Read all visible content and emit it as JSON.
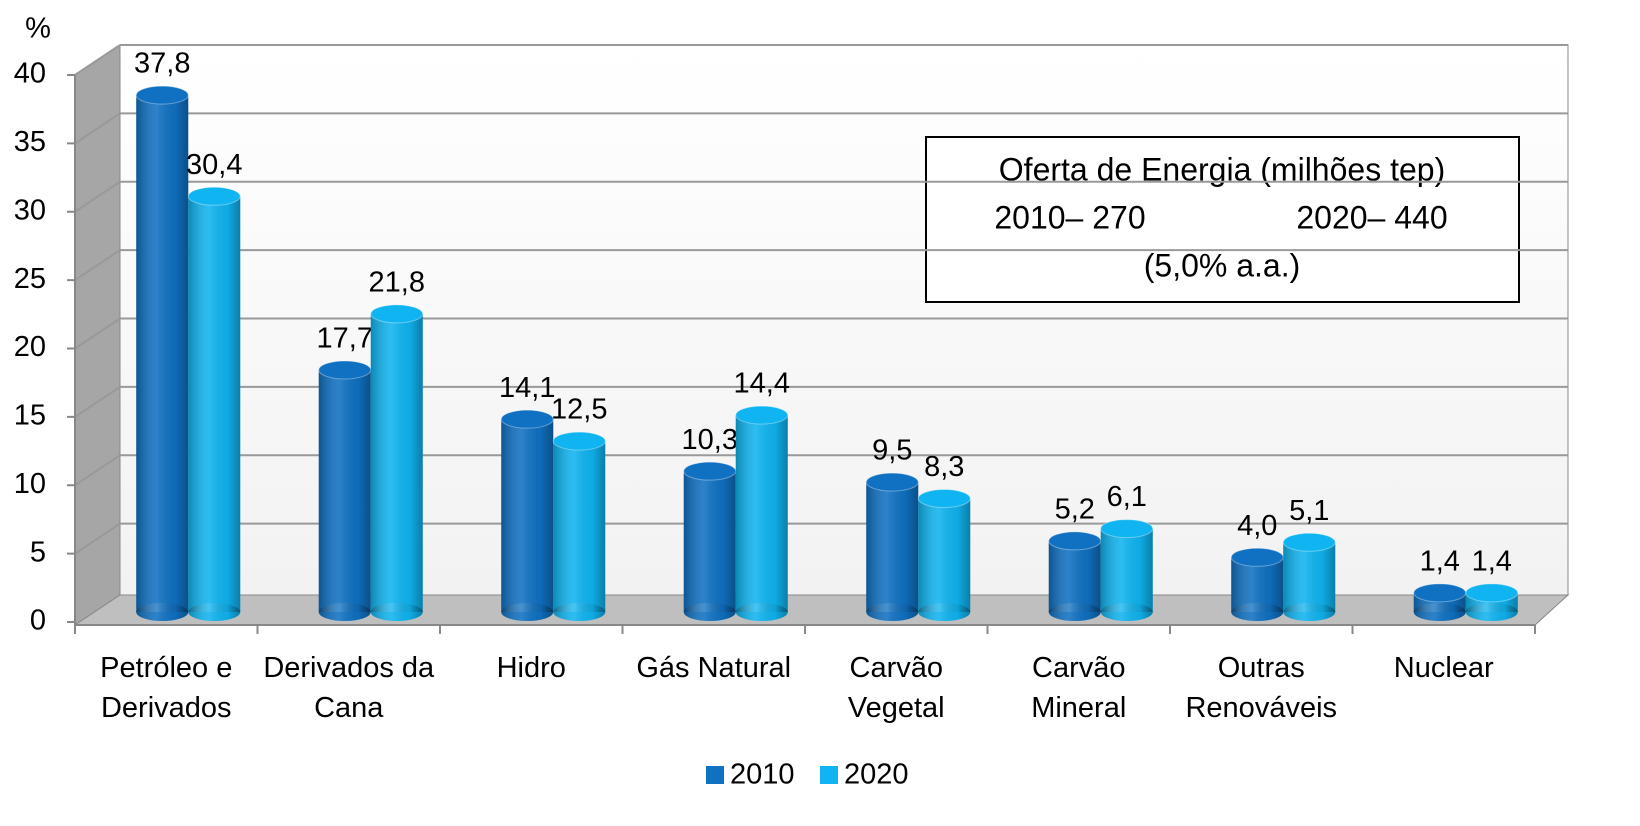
{
  "chart_data": {
    "type": "bar3d",
    "y_label": "%",
    "categories": [
      "Petróleo e Derivados",
      "Derivados da Cana",
      "Hidro",
      "Gás Natural",
      "Carvão Vegetal",
      "Carvão Mineral",
      "Outras Renováveis",
      "Nuclear"
    ],
    "series": [
      {
        "name": "2010",
        "color": "#1071c2",
        "values": [
          37.8,
          17.7,
          14.1,
          10.3,
          9.5,
          5.2,
          4.0,
          1.4
        ],
        "value_labels": [
          "37,8",
          "17,7",
          "14,1",
          "10,3",
          "9,5",
          "5,2",
          "4,0",
          "1,4"
        ]
      },
      {
        "name": "2020",
        "color": "#10b4f0",
        "values": [
          30.4,
          21.8,
          12.5,
          14.4,
          8.3,
          6.1,
          5.1,
          1.4
        ],
        "value_labels": [
          "30,4",
          "21,8",
          "12,5",
          "14,4",
          "8,3",
          "6,1",
          "5,1",
          "1,4"
        ]
      }
    ],
    "ylim": [
      0,
      40
    ],
    "yticks": [
      0,
      5,
      10,
      15,
      20,
      25,
      30,
      35,
      40
    ],
    "grid": true,
    "legend": "bottom",
    "annotation": {
      "line1": "Oferta de Energia (milhões tep)",
      "left": "2010– 270",
      "right": "2020– 440",
      "line3": "(5,0% a.a.)"
    }
  }
}
